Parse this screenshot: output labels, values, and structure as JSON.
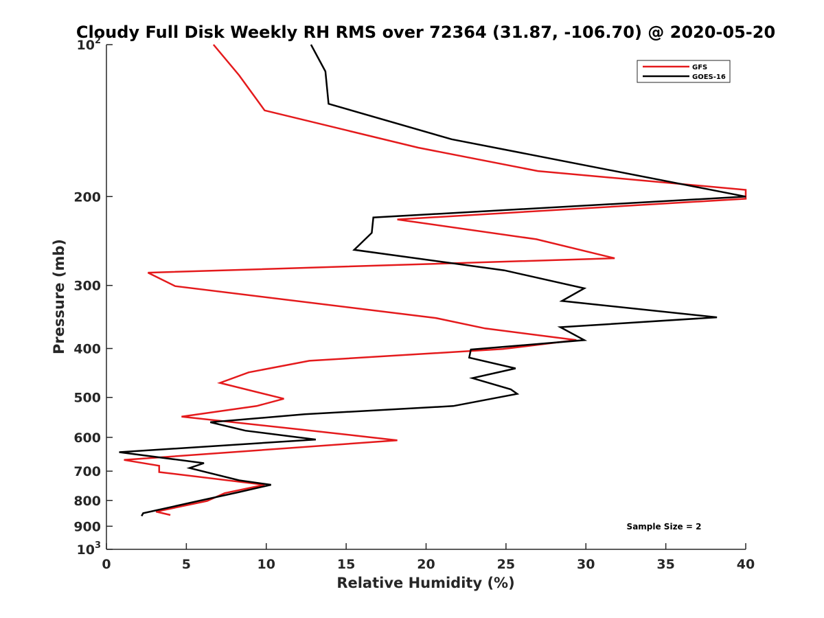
{
  "chart_data": {
    "type": "line",
    "title": "Cloudy Full Disk Weekly RH RMS over 72364 (31.87, -106.70) @ 2020-05-20",
    "xlabel": "Relative Humidity (%)",
    "ylabel": "Pressure (mb)",
    "xlim": [
      0,
      40
    ],
    "ylim": [
      100,
      1000
    ],
    "y_scale": "log",
    "y_reversed": true,
    "x_ticks": [
      "0",
      "5",
      "10",
      "15",
      "20",
      "25",
      "30",
      "35",
      "40"
    ],
    "y_ticks": [
      {
        "value": 100,
        "label": "10",
        "sup": "2"
      },
      {
        "value": 200,
        "label": "200",
        "sup": ""
      },
      {
        "value": 300,
        "label": "300",
        "sup": ""
      },
      {
        "value": 400,
        "label": "400",
        "sup": ""
      },
      {
        "value": 500,
        "label": "500",
        "sup": ""
      },
      {
        "value": 600,
        "label": "600",
        "sup": ""
      },
      {
        "value": 700,
        "label": "700",
        "sup": ""
      },
      {
        "value": 800,
        "label": "800",
        "sup": ""
      },
      {
        "value": 900,
        "label": "900",
        "sup": ""
      },
      {
        "value": 1000,
        "label": "10",
        "sup": "3"
      }
    ],
    "grid": false,
    "legend_position": "top-right",
    "annotation": "Sample Size = 2",
    "series": [
      {
        "name": "GFS",
        "color": "#e41a1c",
        "points": [
          [
            6.7,
            100
          ],
          [
            8.3,
            115
          ],
          [
            9.9,
            135
          ],
          [
            19.5,
            160
          ],
          [
            27,
            178
          ],
          [
            40,
            194
          ],
          [
            40,
            202
          ],
          [
            18.2,
            222
          ],
          [
            26.9,
            243
          ],
          [
            31.8,
            265
          ],
          [
            2.6,
            283
          ],
          [
            4.3,
            301
          ],
          [
            20.6,
            348
          ],
          [
            23.7,
            365
          ],
          [
            29.4,
            385
          ],
          [
            24.8,
            401
          ],
          [
            12.7,
            423
          ],
          [
            8.9,
            446
          ],
          [
            7.1,
            468
          ],
          [
            11.1,
            503
          ],
          [
            9.4,
            520
          ],
          [
            4.7,
            546
          ],
          [
            12.4,
            580
          ],
          [
            18.2,
            608
          ],
          [
            1.1,
            665
          ],
          [
            3.3,
            683
          ],
          [
            3.3,
            703
          ],
          [
            9.9,
            745
          ],
          [
            7.4,
            774
          ],
          [
            6.3,
            802
          ],
          [
            3.1,
            842
          ],
          [
            4,
            855
          ]
        ]
      },
      {
        "name": "GOES-16",
        "color": "#000000",
        "points": [
          [
            12.8,
            100
          ],
          [
            13.7,
            113
          ],
          [
            13.9,
            131
          ],
          [
            21.6,
            154
          ],
          [
            40,
            200
          ],
          [
            16.7,
            220
          ],
          [
            16.6,
            236
          ],
          [
            15.5,
            255
          ],
          [
            24.9,
            280
          ],
          [
            29.9,
            304
          ],
          [
            28.5,
            322
          ],
          [
            38.2,
            347
          ],
          [
            28.4,
            363
          ],
          [
            29.9,
            385
          ],
          [
            22.8,
            402
          ],
          [
            22.7,
            417
          ],
          [
            25.6,
            438
          ],
          [
            22.9,
            458
          ],
          [
            25.3,
            482
          ],
          [
            25.7,
            492
          ],
          [
            21.7,
            520
          ],
          [
            12.4,
            540
          ],
          [
            6.5,
            560
          ],
          [
            8.7,
            582
          ],
          [
            13.1,
            606
          ],
          [
            0.8,
            642
          ],
          [
            6.1,
            675
          ],
          [
            5.2,
            690
          ],
          [
            8.3,
            730
          ],
          [
            10.3,
            745
          ],
          [
            8.3,
            770
          ],
          [
            5.6,
            804
          ],
          [
            2.3,
            848
          ],
          [
            2.2,
            859
          ]
        ]
      }
    ]
  }
}
